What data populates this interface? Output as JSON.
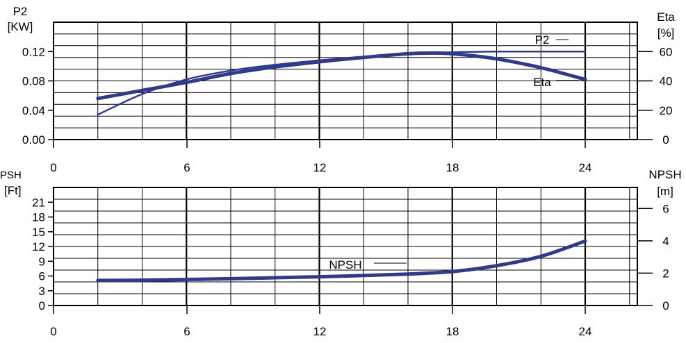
{
  "colors": {
    "curve": "#2e3a8c",
    "grid": "#000000",
    "background": "#ffffff"
  },
  "chart_data": [
    {
      "type": "line",
      "x_ticks": [
        "0",
        "6",
        "12",
        "18",
        "24"
      ],
      "xlim": [
        0,
        26.5
      ],
      "left_axis": {
        "label_line1": "P2",
        "label_line2": "[KW]",
        "lim": [
          0,
          0.16
        ],
        "ticks": [
          {
            "value": 0,
            "label": "0.00"
          },
          {
            "value": 0.04,
            "label": "0.04"
          },
          {
            "value": 0.08,
            "label": "0.08"
          },
          {
            "value": 0.12,
            "label": "0.12"
          }
        ]
      },
      "right_axis": {
        "label_line1": "Eta",
        "label_line2": "[%]",
        "lim": [
          0,
          80
        ],
        "ticks": [
          {
            "value": 0,
            "label": "0"
          },
          {
            "value": 20,
            "label": "20"
          },
          {
            "value": 40,
            "label": "40"
          },
          {
            "value": 60,
            "label": "60"
          }
        ]
      },
      "series": [
        {
          "name": "P2",
          "axis": "left",
          "x": [
            2,
            4,
            6,
            8,
            10,
            12,
            14,
            16,
            18,
            20,
            22,
            24
          ],
          "y": [
            0.034,
            0.062,
            0.082,
            0.094,
            0.102,
            0.108,
            0.113,
            0.117,
            0.119,
            0.12,
            0.12,
            0.12
          ]
        },
        {
          "name": "Eta",
          "axis": "right",
          "x": [
            2,
            4,
            6,
            8,
            10,
            12,
            14,
            16,
            17,
            18,
            20,
            22,
            24
          ],
          "y": [
            28,
            33.5,
            39,
            45,
            49.5,
            53,
            56,
            58.5,
            59,
            58.5,
            55,
            49,
            41
          ]
        }
      ]
    },
    {
      "type": "line",
      "x_ticks": [
        "0",
        "6",
        "12",
        "18",
        "24"
      ],
      "xlim": [
        0,
        26.5
      ],
      "left_axis": {
        "label_line1": "PSH",
        "label_line2": "[Ft]",
        "lim": [
          0,
          24
        ],
        "ticks": [
          {
            "value": 0,
            "label": "0"
          },
          {
            "value": 3,
            "label": "3"
          },
          {
            "value": 6,
            "label": "6"
          },
          {
            "value": 9,
            "label": "9"
          },
          {
            "value": 12,
            "label": "12"
          },
          {
            "value": 15,
            "label": "15"
          },
          {
            "value": 18,
            "label": "18"
          },
          {
            "value": 21,
            "label": "21"
          }
        ]
      },
      "right_axis": {
        "label_line1": "NPSH",
        "label_line2": "[m]",
        "lim": [
          0,
          7.3
        ],
        "ticks": [
          {
            "value": 0,
            "label": "0"
          },
          {
            "value": 2,
            "label": "2"
          },
          {
            "value": 4,
            "label": "4"
          },
          {
            "value": 6,
            "label": "6"
          }
        ]
      },
      "series": [
        {
          "name": "NPSH",
          "axis": "left",
          "x": [
            2,
            4,
            6,
            8,
            10,
            12,
            14,
            16,
            18,
            20,
            22,
            24
          ],
          "y": [
            5.1,
            5.15,
            5.3,
            5.45,
            5.65,
            5.85,
            6.1,
            6.4,
            6.9,
            8.1,
            10,
            13.1
          ]
        }
      ]
    }
  ]
}
